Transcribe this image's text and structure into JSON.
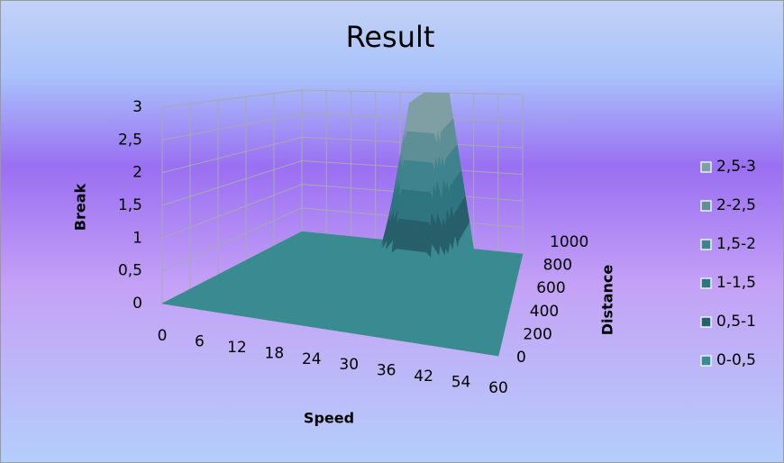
{
  "chart_data": {
    "type": "surface3d",
    "title": "Result",
    "y_label": "Break",
    "x_label": "Speed",
    "z_label": "Distance",
    "categories": [
      "0",
      "6",
      "12",
      "18",
      "24",
      "30",
      "36",
      "42",
      "54",
      "60"
    ],
    "series": [
      {
        "name": "0",
        "values": [
          0,
          0,
          0,
          0,
          0,
          0,
          0,
          0,
          0,
          0
        ]
      },
      {
        "name": "200",
        "values": [
          0,
          0,
          0,
          0,
          0,
          0,
          0,
          0,
          0,
          0
        ]
      },
      {
        "name": "400",
        "values": [
          0,
          0,
          0,
          0,
          0,
          0,
          0,
          0,
          0,
          0
        ]
      },
      {
        "name": "600",
        "values": [
          0,
          0,
          0,
          0,
          0,
          0,
          0,
          0,
          0,
          0
        ]
      },
      {
        "name": "800",
        "values": [
          0,
          0,
          0,
          0,
          0,
          3,
          3,
          0,
          0,
          0
        ]
      },
      {
        "name": "1000",
        "values": [
          0,
          0,
          0,
          0,
          0,
          3,
          3,
          0,
          0,
          0
        ]
      }
    ],
    "ylim": [
      0,
      3
    ],
    "yticks": [
      0,
      {
        "value": 0.5,
        "label": "0,5"
      },
      1,
      {
        "value": 1.5,
        "label": "1,5"
      },
      2,
      {
        "value": 2.5,
        "label": "2,5"
      },
      3
    ],
    "grid": true,
    "legend_position": "right",
    "bands": [
      {
        "name": "2,5-3",
        "color": "#7f9fa4"
      },
      {
        "name": "2-2,5",
        "color": "#5f8f96"
      },
      {
        "name": "1,5-2",
        "color": "#3f838d"
      },
      {
        "name": "1-1,5",
        "color": "#2f7580"
      },
      {
        "name": "0,5-1",
        "color": "#275f6a"
      },
      {
        "name": "0-0,5",
        "color": "#3a8a92"
      }
    ]
  }
}
